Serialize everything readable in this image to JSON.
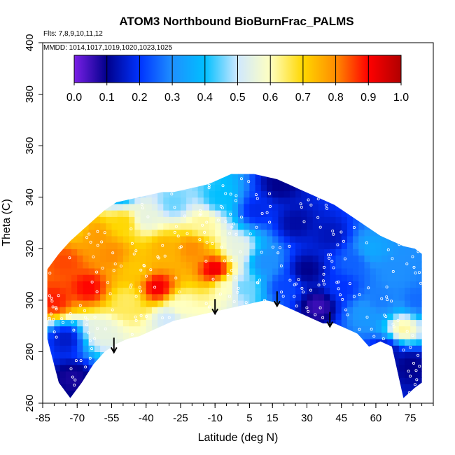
{
  "chart_data": {
    "type": "heatmap",
    "title": "ATOM3 Northbound BioBurnFrac_PALMS",
    "annotations": [
      "Flts: 7,8,9,10,11,12",
      "MMDD: 1014,1017,1019,1020,1023,1025"
    ],
    "xlabel": "Latitude (deg N)",
    "ylabel": "Theta (C)",
    "xlim": [
      -85,
      85
    ],
    "ylim": [
      260,
      400
    ],
    "x_ticks": [
      -85,
      -70,
      -55,
      -40,
      -25,
      -10,
      5,
      15,
      30,
      45,
      60,
      75
    ],
    "y_ticks": [
      260,
      280,
      300,
      320,
      340,
      360,
      380,
      400
    ],
    "colorbar": {
      "ticks": [
        "0.0",
        "0.1",
        "0.2",
        "0.3",
        "0.4",
        "0.5",
        "0.6",
        "0.7",
        "0.8",
        "0.9",
        "1.0"
      ],
      "range": [
        0,
        1
      ],
      "colors": [
        "#7a1fe6",
        "#00008b",
        "#0033ff",
        "#1e90ff",
        "#00bfff",
        "#cfe8ff",
        "#ffffc0",
        "#ffd700",
        "#ff8c00",
        "#ff0000",
        "#b00000"
      ]
    },
    "tropopause_arrows": [
      {
        "lat": -54,
        "theta": 280
      },
      {
        "lat": -10,
        "theta": 295
      },
      {
        "lat": 17,
        "theta": 298
      },
      {
        "lat": 40,
        "theta": 290
      }
    ],
    "coverage": {
      "lats": [
        -83,
        -78,
        -73,
        -68,
        -63,
        -58,
        -53,
        -48,
        -43,
        -38,
        -33,
        -28,
        -23,
        -18,
        -13,
        -8,
        -3,
        2,
        7,
        12,
        17,
        22,
        27,
        32,
        37,
        42,
        47,
        52,
        57,
        62,
        67,
        72,
        77,
        80
      ],
      "theta_min": [
        285,
        268,
        262,
        268,
        275,
        280,
        283,
        285,
        286,
        288,
        290,
        292,
        293,
        294,
        295,
        296,
        297,
        298,
        299,
        300,
        299,
        297,
        295,
        293,
        291,
        291,
        289,
        287,
        282,
        284,
        282,
        262,
        266,
        268
      ],
      "theta_max": [
        312,
        318,
        323,
        327,
        331,
        335,
        338,
        339,
        340,
        341,
        342,
        342,
        343,
        344,
        345,
        347,
        349,
        349,
        349,
        348,
        347,
        345,
        343,
        341,
        339,
        337,
        334,
        331,
        328,
        325,
        323,
        321,
        320,
        318
      ]
    },
    "field": [
      {
        "lat": -80,
        "theta": 300,
        "value": 0.88
      },
      {
        "lat": -75,
        "theta": 315,
        "value": 0.85
      },
      {
        "lat": -75,
        "theta": 285,
        "value": 0.15
      },
      {
        "lat": -72,
        "theta": 270,
        "value": 0.08
      },
      {
        "lat": -65,
        "theta": 305,
        "value": 0.9
      },
      {
        "lat": -62,
        "theta": 325,
        "value": 0.78
      },
      {
        "lat": -60,
        "theta": 288,
        "value": 0.55
      },
      {
        "lat": -55,
        "theta": 318,
        "value": 0.8
      },
      {
        "lat": -50,
        "theta": 330,
        "value": 0.7
      },
      {
        "lat": -48,
        "theta": 300,
        "value": 0.65
      },
      {
        "lat": -45,
        "theta": 312,
        "value": 0.72
      },
      {
        "lat": -40,
        "theta": 332,
        "value": 0.55
      },
      {
        "lat": -35,
        "theta": 305,
        "value": 0.92
      },
      {
        "lat": -32,
        "theta": 320,
        "value": 0.75
      },
      {
        "lat": -28,
        "theta": 338,
        "value": 0.45
      },
      {
        "lat": -25,
        "theta": 298,
        "value": 0.6
      },
      {
        "lat": -20,
        "theta": 320,
        "value": 0.8
      },
      {
        "lat": -15,
        "theta": 330,
        "value": 0.62
      },
      {
        "lat": -10,
        "theta": 312,
        "value": 0.93
      },
      {
        "lat": -8,
        "theta": 340,
        "value": 0.4
      },
      {
        "lat": -5,
        "theta": 305,
        "value": 0.6
      },
      {
        "lat": 0,
        "theta": 320,
        "value": 0.55
      },
      {
        "lat": 2,
        "theta": 305,
        "value": 0.45
      },
      {
        "lat": 8,
        "theta": 335,
        "value": 0.18
      },
      {
        "lat": 12,
        "theta": 315,
        "value": 0.3
      },
      {
        "lat": 18,
        "theta": 345,
        "value": 0.1
      },
      {
        "lat": 20,
        "theta": 305,
        "value": 0.22
      },
      {
        "lat": 25,
        "theta": 330,
        "value": 0.12
      },
      {
        "lat": 30,
        "theta": 312,
        "value": 0.1
      },
      {
        "lat": 35,
        "theta": 298,
        "value": 0.05
      },
      {
        "lat": 40,
        "theta": 325,
        "value": 0.14
      },
      {
        "lat": 45,
        "theta": 305,
        "value": 0.2
      },
      {
        "lat": 50,
        "theta": 315,
        "value": 0.25
      },
      {
        "lat": 55,
        "theta": 295,
        "value": 0.32
      },
      {
        "lat": 58,
        "theta": 320,
        "value": 0.35
      },
      {
        "lat": 62,
        "theta": 300,
        "value": 0.28
      },
      {
        "lat": 68,
        "theta": 310,
        "value": 0.3
      },
      {
        "lat": 72,
        "theta": 289,
        "value": 0.62
      },
      {
        "lat": 75,
        "theta": 275,
        "value": 0.1
      },
      {
        "lat": 78,
        "theta": 300,
        "value": 0.26
      },
      {
        "lat": -52,
        "theta": 342,
        "value": 0.35
      },
      {
        "lat": -70,
        "theta": 328,
        "value": 0.72
      },
      {
        "lat": 65,
        "theta": 280,
        "value": 0.12
      },
      {
        "lat": -30,
        "theta": 293,
        "value": 0.5
      }
    ]
  }
}
